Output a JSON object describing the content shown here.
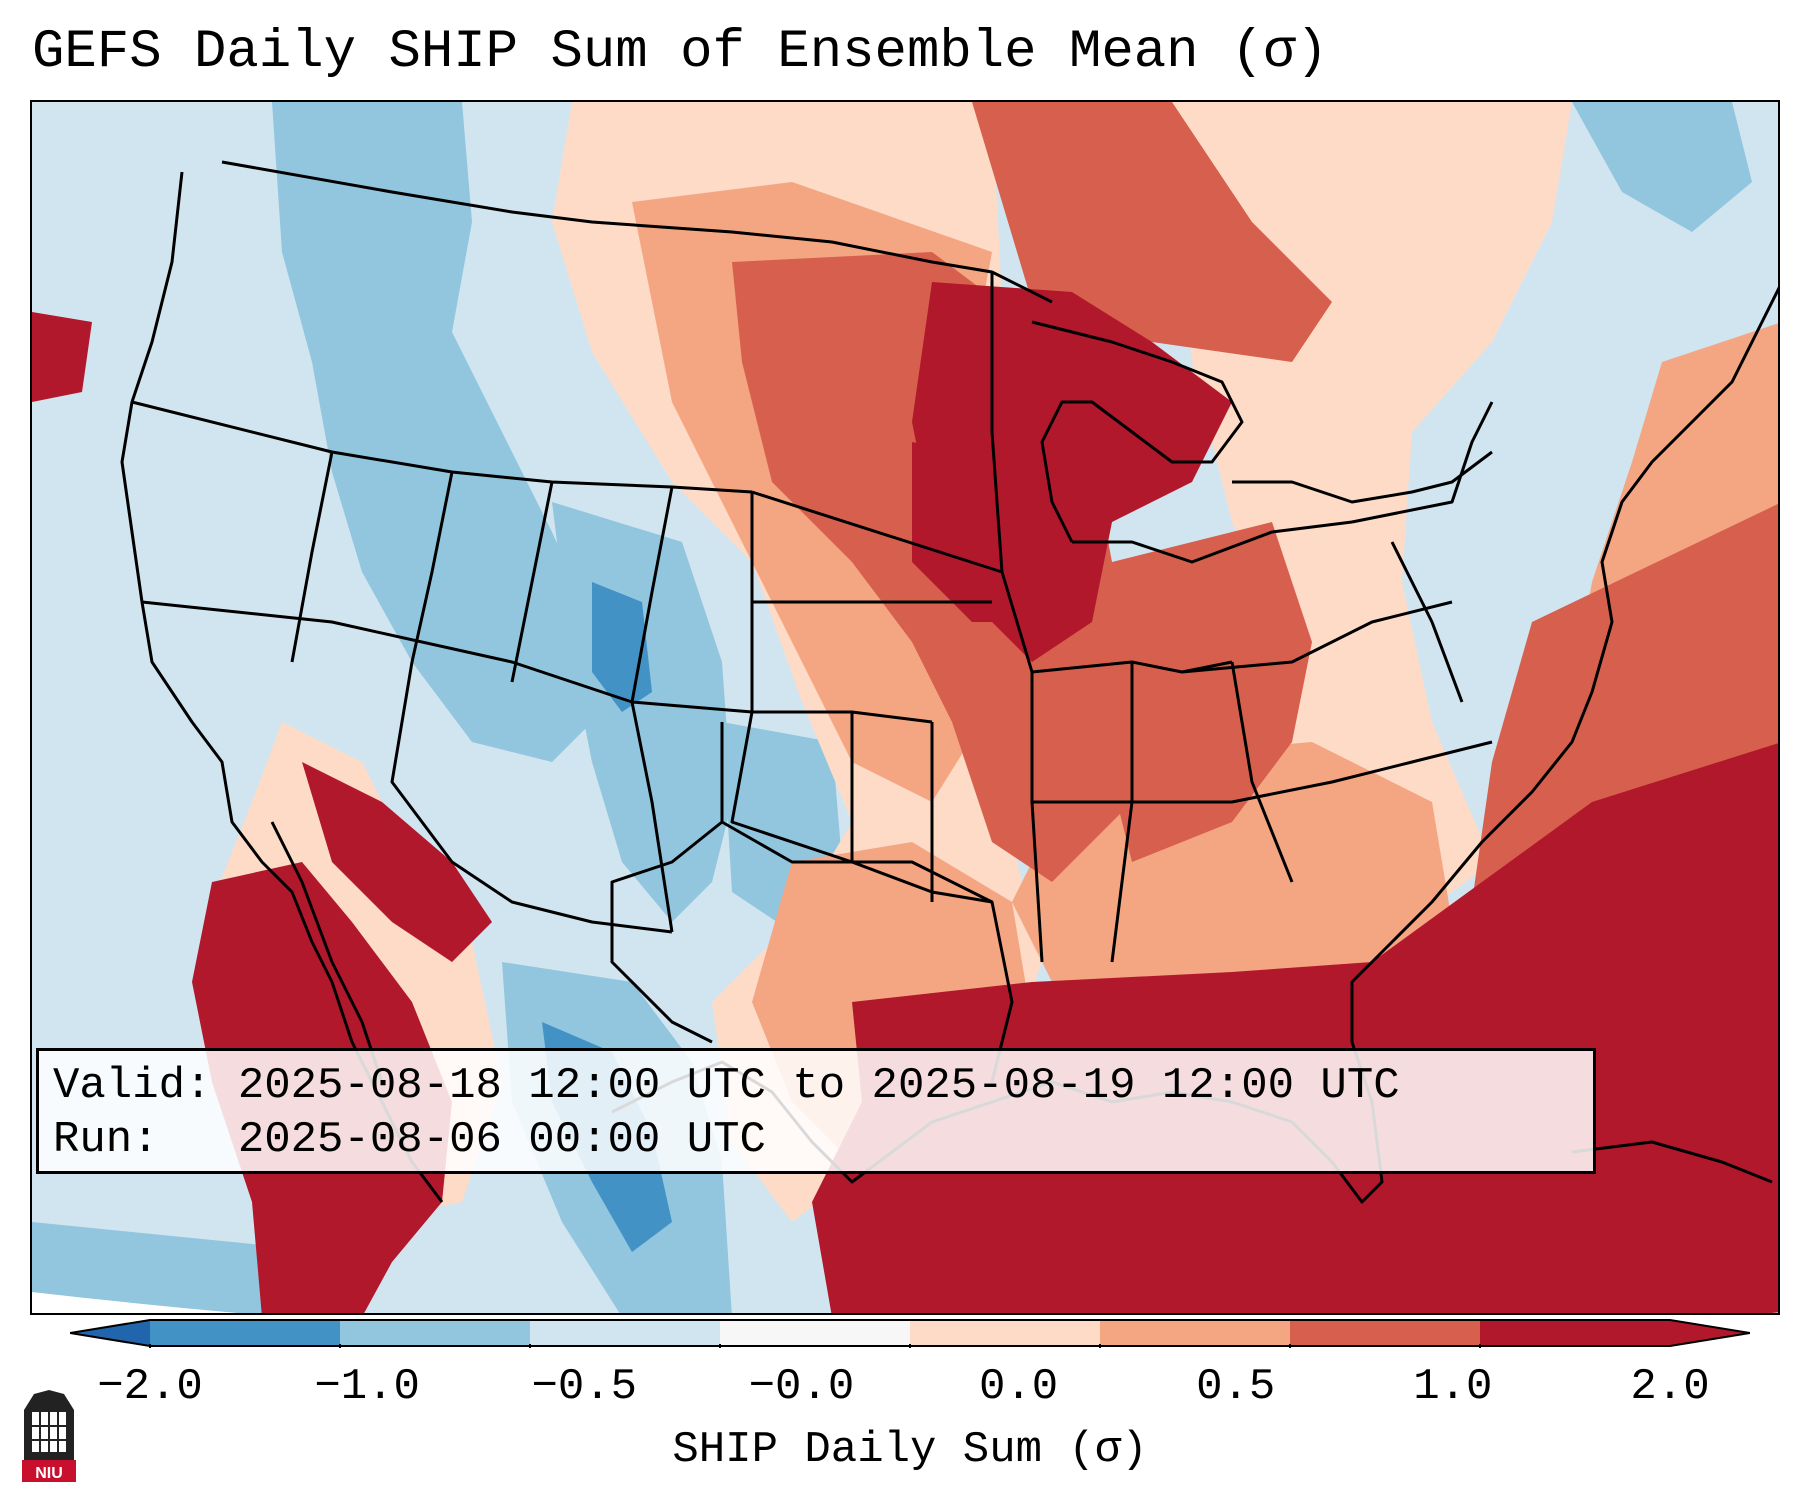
{
  "title": "GEFS Daily SHIP Sum of Ensemble Mean (σ)",
  "info": {
    "valid_label": "Valid:",
    "valid_value": "2025-08-18 12:00 UTC to 2025-08-19 12:00 UTC",
    "run_label": "Run:",
    "run_value": "2025-08-06 00:00 UTC"
  },
  "colorbar": {
    "label": "SHIP Daily Sum (σ)",
    "ticks": [
      "−2.0",
      "−1.0",
      "−0.5",
      "−0.0",
      "0.0",
      "0.5",
      "1.0",
      "2.0"
    ],
    "colors": [
      "#4292c6",
      "#92c5de",
      "#d1e5f0",
      "#f7f7f7",
      "#fddbc7",
      "#f4a582",
      "#d6604d",
      "#b2182b"
    ],
    "extend_low_color": "#2166ac",
    "extend_high_color": "#b2182b"
  },
  "logo": {
    "text": "NIU",
    "color": "#c8102e"
  }
}
